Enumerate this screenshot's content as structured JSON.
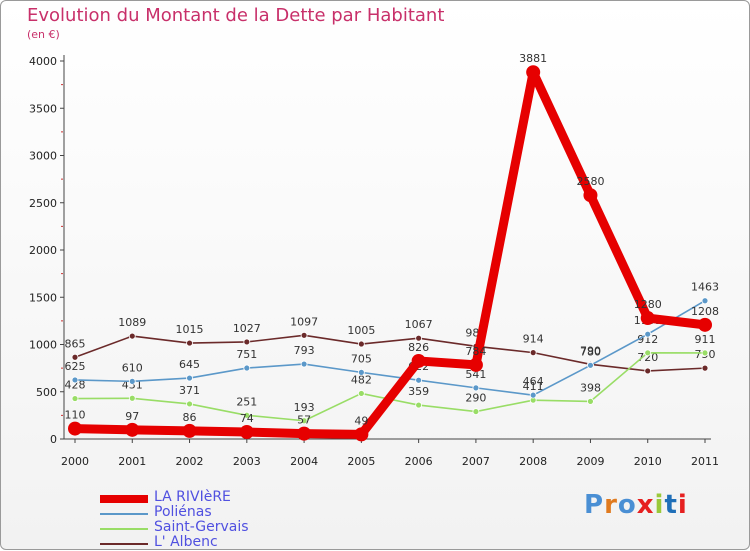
{
  "header": {
    "title": "Evolution du Montant de la Dette par Habitant",
    "subtitle": "(en €)"
  },
  "logo": {
    "text": "Proxiti",
    "colors": [
      "#4a8fd4",
      "#e07a1e",
      "#4a8fd4",
      "#e62020",
      "#9ac93a",
      "#1f6fb8",
      "#e62020"
    ]
  },
  "chart_data": {
    "type": "line",
    "x": [
      2000,
      2001,
      2002,
      2003,
      2004,
      2005,
      2006,
      2007,
      2008,
      2009,
      2010,
      2011
    ],
    "ylim": [
      0,
      4000
    ],
    "yticks": [
      0,
      500,
      1000,
      1500,
      2000,
      2500,
      3000,
      3500,
      4000
    ],
    "grid": false,
    "legend_position": "bottom-left",
    "series": [
      {
        "name": "LA RIVIèRE",
        "color": "#e60000",
        "values": [
          110,
          97,
          86,
          74,
          57,
          49,
          826,
          784,
          3881,
          2580,
          1280,
          1208
        ]
      },
      {
        "name": "Poliénas",
        "color": "#5b98c9",
        "values": [
          625,
          610,
          645,
          751,
          793,
          705,
          622,
          541,
          464,
          780,
          1109,
          1463
        ]
      },
      {
        "name": "Saint-Gervais",
        "color": "#99dd66",
        "values": [
          428,
          431,
          371,
          251,
          193,
          482,
          359,
          290,
          411,
          398,
          912,
          911
        ]
      },
      {
        "name": "L' Albenc",
        "color": "#6b2a2a",
        "values": [
          865,
          1089,
          1015,
          1027,
          1097,
          1005,
          1067,
          981,
          914,
          790,
          720,
          750
        ]
      }
    ]
  }
}
